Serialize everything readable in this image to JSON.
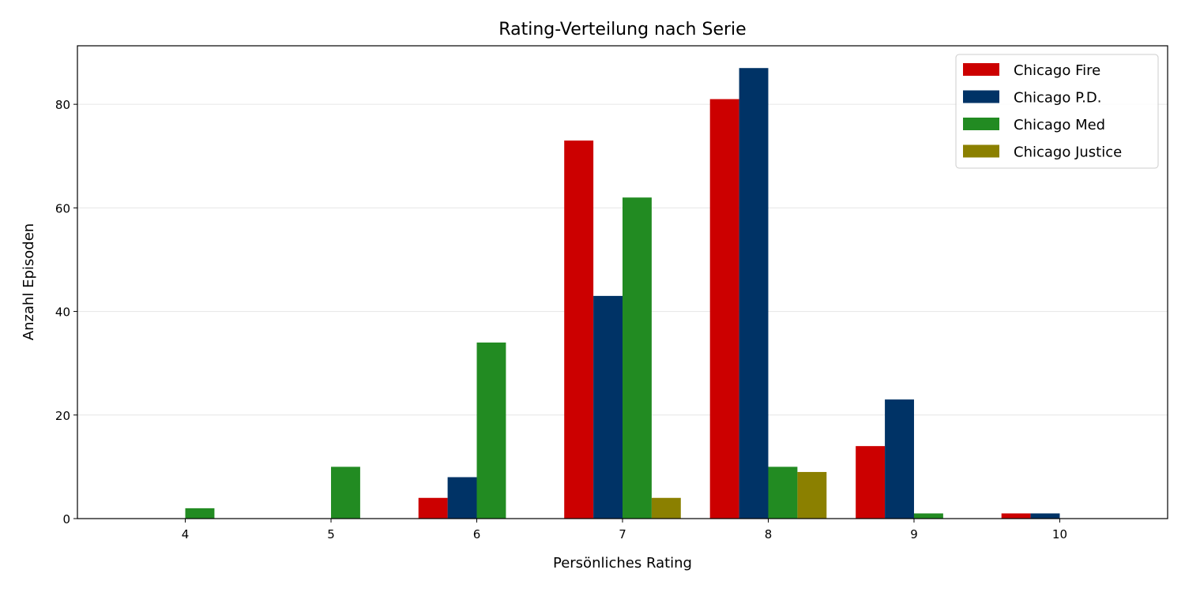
{
  "chart_data": {
    "type": "bar",
    "title": "Rating-Verteilung nach Serie",
    "xlabel": "Persönliches Rating",
    "ylabel": "Anzahl Episoden",
    "categories": [
      "4",
      "5",
      "6",
      "7",
      "8",
      "9",
      "10"
    ],
    "x": [
      4,
      5,
      6,
      7,
      8,
      9,
      10
    ],
    "xlim": [
      3.26,
      10.74
    ],
    "ylim": [
      0,
      91.3
    ],
    "yticks": [
      0,
      20,
      40,
      60,
      80
    ],
    "grid": "y",
    "legend_position": "top-right",
    "series": [
      {
        "name": "Chicago Fire",
        "color": "#cc0000",
        "values": [
          0,
          0,
          4,
          73,
          81,
          14,
          1
        ]
      },
      {
        "name": "Chicago P.D.",
        "color": "#003366",
        "values": [
          0,
          0,
          8,
          43,
          87,
          23,
          1
        ]
      },
      {
        "name": "Chicago Med",
        "color": "#228b22",
        "values": [
          2,
          10,
          34,
          62,
          10,
          1,
          0
        ]
      },
      {
        "name": "Chicago Justice",
        "color": "#8b8000",
        "values": [
          0,
          0,
          0,
          4,
          9,
          0,
          0
        ]
      }
    ]
  }
}
